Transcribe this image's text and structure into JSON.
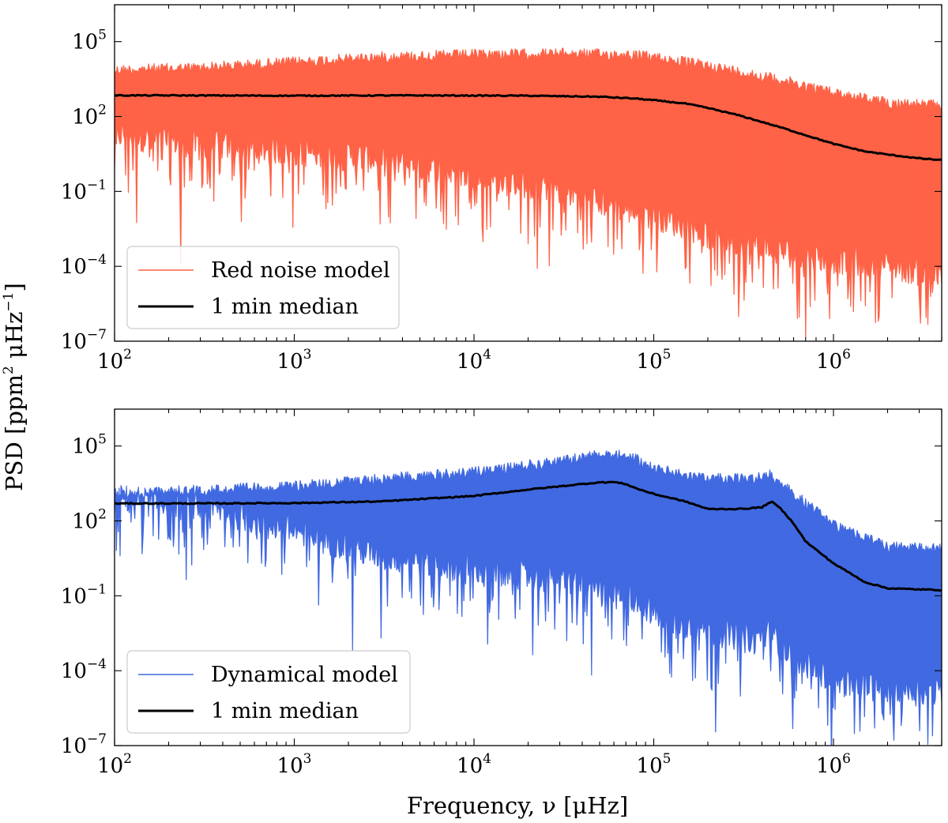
{
  "chart_data": [
    {
      "type": "line",
      "xscale": "log",
      "yscale": "log",
      "xlim": [
        100,
        4000000
      ],
      "ylim": [
        1e-07,
        3000000.0
      ],
      "x_ticks": [
        {
          "base": "10",
          "exp": "2",
          "value": 100
        },
        {
          "base": "10",
          "exp": "3",
          "value": 1000
        },
        {
          "base": "10",
          "exp": "4",
          "value": 10000
        },
        {
          "base": "10",
          "exp": "5",
          "value": 100000
        },
        {
          "base": "10",
          "exp": "6",
          "value": 1000000
        }
      ],
      "y_ticks": [
        {
          "base": "10",
          "exp": "5",
          "value": 100000
        },
        {
          "base": "10",
          "exp": "2",
          "value": 100
        },
        {
          "base": "10",
          "exp": "−1",
          "value": 0.1
        },
        {
          "base": "10",
          "exp": "−4",
          "value": 0.0001
        },
        {
          "base": "10",
          "exp": "−7",
          "value": 1e-07
        }
      ],
      "legend_position": "lower-left",
      "series": [
        {
          "name": "Red noise model",
          "color": "#ff6347",
          "kind": "noise-band",
          "x": [
            100,
            300,
            1000,
            3000,
            10000,
            30000,
            70000,
            100000,
            200000,
            500000,
            1000000,
            2000000,
            4000000
          ],
          "upper": [
            12000,
            15000,
            25000,
            40000,
            50000,
            55000,
            50000,
            40000,
            18000,
            5000,
            1500,
            600,
            450
          ],
          "lower": [
            5,
            2,
            1,
            0.5,
            0.1,
            0.03,
            0.005,
            0.003,
            0.0005,
            0.0001,
            5e-05,
            3e-05,
            1e-05
          ],
          "min_dips": [
            [
              105,
              20
            ],
            [
              160,
              5
            ],
            [
              500,
              0.3
            ],
            [
              1500,
              0.02
            ],
            [
              3000,
              0.005
            ],
            [
              7000,
              0.003
            ],
            [
              20000,
              0.0008
            ],
            [
              60000,
              0.0003
            ],
            [
              150000,
              8e-05
            ],
            [
              300000,
              2e-05
            ],
            [
              700000,
              5e-06
            ],
            [
              950000,
              8e-07
            ],
            [
              1800000,
              1e-06
            ]
          ]
        },
        {
          "name": "1 min median",
          "color": "#000000",
          "kind": "line",
          "x": [
            100,
            200,
            500,
            1000,
            2000,
            5000,
            10000,
            20000,
            50000,
            80000,
            100000,
            150000,
            200000,
            300000,
            500000,
            700000,
            1000000,
            1500000,
            2000000,
            3000000,
            4000000
          ],
          "y": [
            700,
            700,
            690,
            680,
            690,
            700,
            690,
            680,
            620,
            520,
            450,
            330,
            220,
            110,
            38,
            18,
            8,
            4,
            3,
            2.1,
            1.8
          ]
        }
      ],
      "ylabel": "PSD [ppm² μHz⁻¹]",
      "xlabel": ""
    },
    {
      "type": "line",
      "xscale": "log",
      "yscale": "log",
      "xlim": [
        100,
        4000000
      ],
      "ylim": [
        1e-07,
        3000000.0
      ],
      "x_ticks": [
        {
          "base": "10",
          "exp": "2",
          "value": 100
        },
        {
          "base": "10",
          "exp": "3",
          "value": 1000
        },
        {
          "base": "10",
          "exp": "4",
          "value": 10000
        },
        {
          "base": "10",
          "exp": "5",
          "value": 100000
        },
        {
          "base": "10",
          "exp": "6",
          "value": 1000000
        }
      ],
      "y_ticks": [
        {
          "base": "10",
          "exp": "5",
          "value": 100000
        },
        {
          "base": "10",
          "exp": "2",
          "value": 100
        },
        {
          "base": "10",
          "exp": "−1",
          "value": 0.1
        },
        {
          "base": "10",
          "exp": "−4",
          "value": 0.0001
        },
        {
          "base": "10",
          "exp": "−7",
          "value": 1e-07
        }
      ],
      "legend_position": "lower-left",
      "series": [
        {
          "name": "Dynamical model",
          "color": "#4169e1",
          "kind": "noise-band",
          "x": [
            100,
            200,
            400,
            1000,
            3000,
            10000,
            30000,
            60000,
            80000,
            100000,
            200000,
            350000,
            450000,
            500000,
            600000,
            800000,
            1000000,
            2000000,
            4000000
          ],
          "upper": [
            1800,
            2500,
            3000,
            4000,
            8000,
            15000,
            40000,
            90000,
            50000,
            20000,
            8000,
            8000,
            12000,
            6000,
            2000,
            400,
            120,
            15,
            12
          ],
          "lower": [
            200,
            120,
            60,
            10,
            1,
            0.3,
            0.1,
            0.05,
            0.02,
            0.005,
            0.001,
            0.0005,
            0.0008,
            0.0003,
            0.0001,
            3e-05,
            1e-05,
            5e-06,
            3e-06
          ],
          "min_dips": [
            [
              340,
              50
            ],
            [
              700,
              3
            ],
            [
              2000,
              0.5
            ],
            [
              9000,
              0.3
            ],
            [
              30000,
              0.05
            ],
            [
              45000,
              0.003
            ],
            [
              120000,
              0.0005
            ],
            [
              250000,
              0.0002
            ],
            [
              450000,
              0.0001
            ],
            [
              900000,
              2e-05
            ],
            [
              1300000,
              3e-07
            ],
            [
              1700000,
              5e-07
            ],
            [
              2400000,
              2e-06
            ]
          ]
        },
        {
          "name": "1 min median",
          "color": "#000000",
          "kind": "line",
          "x": [
            100,
            300,
            1000,
            3000,
            10000,
            20000,
            40000,
            50000,
            60000,
            70000,
            80000,
            100000,
            150000,
            200000,
            300000,
            400000,
            450000,
            500000,
            600000,
            700000,
            1000000,
            1500000,
            2000000,
            3000000,
            4000000
          ],
          "y": [
            500,
            500,
            520,
            600,
            1000,
            1800,
            3000,
            3500,
            3600,
            3000,
            2000,
            1200,
            600,
            300,
            300,
            350,
            600,
            350,
            80,
            15,
            2,
            0.35,
            0.2,
            0.18,
            0.17
          ]
        }
      ],
      "ylabel": "PSD [ppm² μHz⁻¹]",
      "xlabel": "Frequency, ν [μHz]"
    }
  ],
  "figure": {
    "ylabel": "PSD [ppm² μHz⁻¹]",
    "ylabel_parts": {
      "a": "PSD [ppm",
      "b": "2",
      "c": " μHz",
      "d": "−1",
      "e": "]"
    },
    "xlabel": "Frequency, ν [μHz]"
  }
}
